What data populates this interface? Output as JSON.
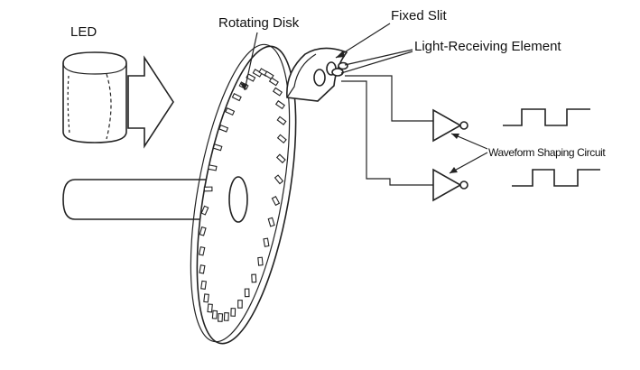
{
  "diagram": {
    "labels": {
      "led": "LED",
      "rotating_disk": "Rotating Disk",
      "fixed_slit": "Fixed Slit",
      "light_receiving_element": "Light-Receiving Element",
      "waveform_shaping_circuit": "Waveform Shaping Circuit"
    },
    "colors": {
      "ink": "#222222",
      "background": "#ffffff"
    },
    "disk_slit_count": 36
  }
}
